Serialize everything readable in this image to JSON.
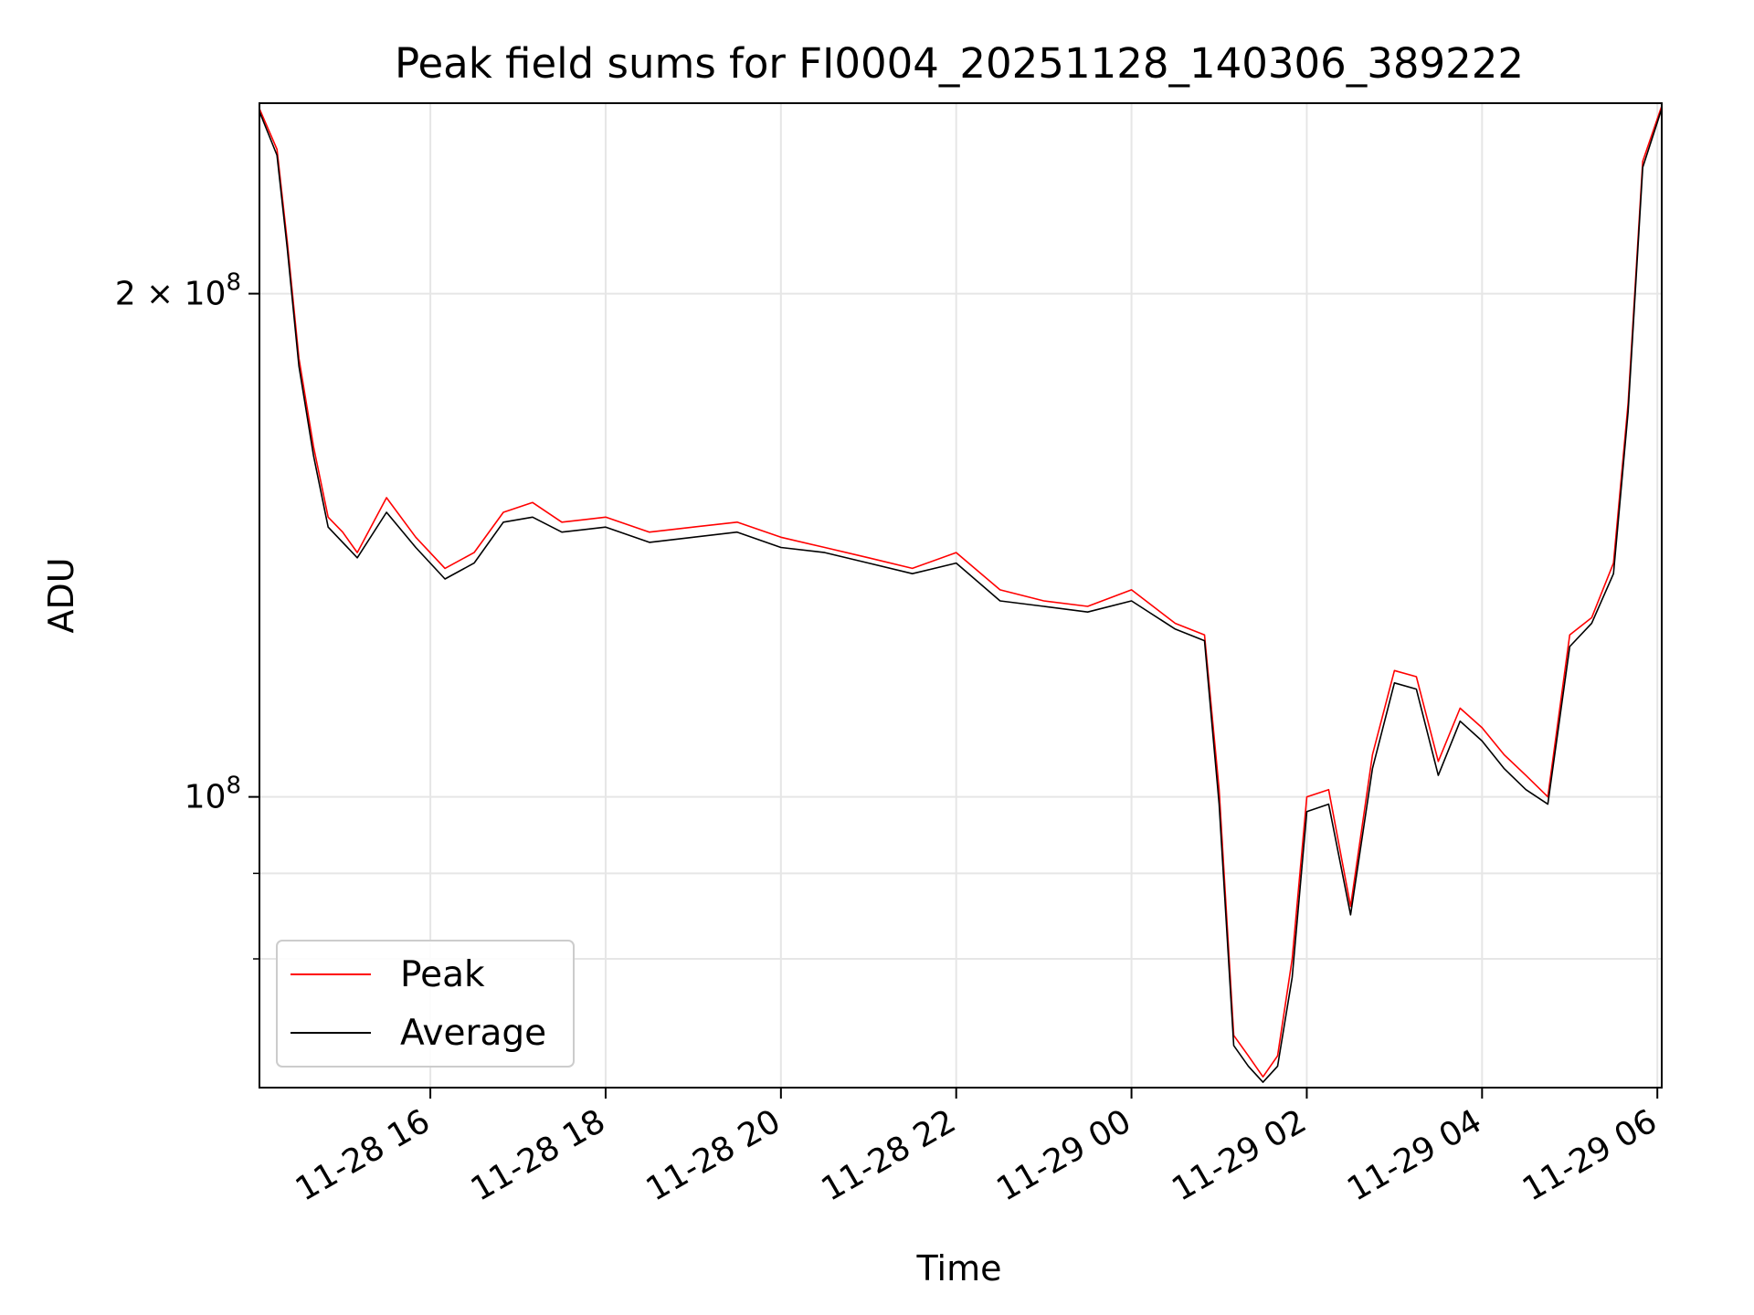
{
  "chart_data": {
    "type": "line",
    "title": "Peak field sums for FI0004_20251128_140306_389222",
    "xlabel": "Time",
    "ylabel": "ADU",
    "yscale": "log",
    "xlim": [
      "2025-11-28 14:03",
      "2025-11-29 06:03"
    ],
    "ylim": [
      67000000,
      260000000
    ],
    "x_ticks": [
      "11-28 16",
      "11-28 18",
      "11-28 20",
      "11-28 22",
      "11-29 00",
      "11-29 02",
      "11-29 04",
      "11-29 06"
    ],
    "y_ticks": [
      {
        "value": 100000000,
        "base": "10",
        "exp": "8"
      },
      {
        "value": 200000000,
        "base": "2 × 10",
        "exp": "8"
      }
    ],
    "minor_y_ticks": [
      80000000,
      90000000
    ],
    "grid": true,
    "legend_position": "lower-left",
    "series": [
      {
        "name": "Peak",
        "color": "#ff0000",
        "x": [
          "11-28 14:03",
          "11-28 14:15",
          "11-28 14:22",
          "11-28 14:30",
          "11-28 14:40",
          "11-28 14:50",
          "11-28 15:00",
          "11-28 15:10",
          "11-28 15:30",
          "11-28 15:50",
          "11-28 16:10",
          "11-28 16:30",
          "11-28 16:50",
          "11-28 17:10",
          "11-28 17:30",
          "11-28 18:00",
          "11-28 18:30",
          "11-28 19:00",
          "11-28 19:30",
          "11-28 20:00",
          "11-28 20:30",
          "11-28 21:00",
          "11-28 21:30",
          "11-28 22:00",
          "11-28 22:30",
          "11-28 23:00",
          "11-28 23:30",
          "11-29 00:00",
          "11-29 00:30",
          "11-29 00:50",
          "11-29 01:00",
          "11-29 01:10",
          "11-29 01:20",
          "11-29 01:30",
          "11-29 01:40",
          "11-29 01:50",
          "11-29 02:00",
          "11-29 02:15",
          "11-29 02:30",
          "11-29 02:45",
          "11-29 03:00",
          "11-29 03:15",
          "11-29 03:30",
          "11-29 03:45",
          "11-29 04:00",
          "11-29 04:15",
          "11-29 04:30",
          "11-29 04:45",
          "11-29 05:00",
          "11-29 05:15",
          "11-29 05:30",
          "11-29 05:40",
          "11-29 05:50",
          "11-29 06:03"
        ],
        "values": [
          258000000,
          244000000,
          215000000,
          183000000,
          162000000,
          147000000,
          144000000,
          140000000,
          151000000,
          143000000,
          137000000,
          140000000,
          148000000,
          150000000,
          146000000,
          147000000,
          144000000,
          145000000,
          146000000,
          143000000,
          141000000,
          139000000,
          137000000,
          140000000,
          133000000,
          131000000,
          130000000,
          133000000,
          127000000,
          125000000,
          101000000,
          72000000,
          70000000,
          68000000,
          70000000,
          80000000,
          100000000,
          101000000,
          86000000,
          106000000,
          119000000,
          118000000,
          105000000,
          113000000,
          110000000,
          106000000,
          103000000,
          100000000,
          125000000,
          128000000,
          138000000,
          172000000,
          240000000,
          259000000
        ]
      },
      {
        "name": "Average",
        "color": "#000000",
        "x": [
          "11-28 14:03",
          "11-28 14:15",
          "11-28 14:22",
          "11-28 14:30",
          "11-28 14:40",
          "11-28 14:50",
          "11-28 15:00",
          "11-28 15:10",
          "11-28 15:30",
          "11-28 15:50",
          "11-28 16:10",
          "11-28 16:30",
          "11-28 16:50",
          "11-28 17:10",
          "11-28 17:30",
          "11-28 18:00",
          "11-28 18:30",
          "11-28 19:00",
          "11-28 19:30",
          "11-28 20:00",
          "11-28 20:30",
          "11-28 21:00",
          "11-28 21:30",
          "11-28 22:00",
          "11-28 22:30",
          "11-28 23:00",
          "11-28 23:30",
          "11-29 00:00",
          "11-29 00:30",
          "11-29 00:50",
          "11-29 01:00",
          "11-29 01:10",
          "11-29 01:20",
          "11-29 01:30",
          "11-29 01:40",
          "11-29 01:50",
          "11-29 02:00",
          "11-29 02:15",
          "11-29 02:30",
          "11-29 02:45",
          "11-29 03:00",
          "11-29 03:15",
          "11-29 03:30",
          "11-29 03:45",
          "11-29 04:00",
          "11-29 04:15",
          "11-29 04:30",
          "11-29 04:45",
          "11-29 05:00",
          "11-29 05:15",
          "11-29 05:30",
          "11-29 05:40",
          "11-29 05:50",
          "11-29 06:03"
        ],
        "values": [
          257000000,
          242000000,
          213000000,
          181000000,
          160000000,
          145000000,
          142000000,
          139000000,
          148000000,
          141000000,
          135000000,
          138000000,
          146000000,
          147000000,
          144000000,
          145000000,
          142000000,
          143000000,
          144000000,
          141000000,
          140000000,
          138000000,
          136000000,
          138000000,
          131000000,
          130000000,
          129000000,
          131000000,
          126000000,
          124000000,
          99000000,
          71000000,
          69000000,
          67500000,
          69000000,
          78000000,
          98000000,
          99000000,
          85000000,
          104000000,
          117000000,
          116000000,
          103000000,
          111000000,
          108000000,
          104000000,
          101000000,
          99000000,
          123000000,
          127000000,
          136000000,
          170000000,
          238000000,
          258000000
        ]
      }
    ]
  }
}
